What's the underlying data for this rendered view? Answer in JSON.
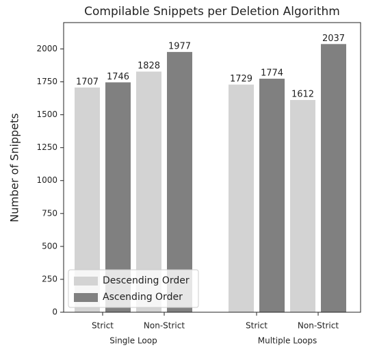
{
  "chart_data": {
    "type": "bar",
    "title": "Compilable Snippets per Deletion Algorithm",
    "ylabel": "Number of Snippets",
    "categories": [
      "Strict",
      "Non-Strict",
      "Strict",
      "Non-Strict"
    ],
    "groups": [
      "Single Loop",
      "Multiple Loops"
    ],
    "series": [
      {
        "name": "Descending Order",
        "color": "#d3d3d3",
        "values": [
          1707,
          1828,
          1729,
          1612
        ]
      },
      {
        "name": "Ascending Order",
        "color": "#808080",
        "values": [
          1746,
          1977,
          1774,
          2037
        ]
      }
    ],
    "ylim": [
      0,
      2200
    ],
    "yticks": [
      0,
      250,
      500,
      750,
      1000,
      1250,
      1500,
      1750,
      2000
    ],
    "legend": "lower left"
  }
}
